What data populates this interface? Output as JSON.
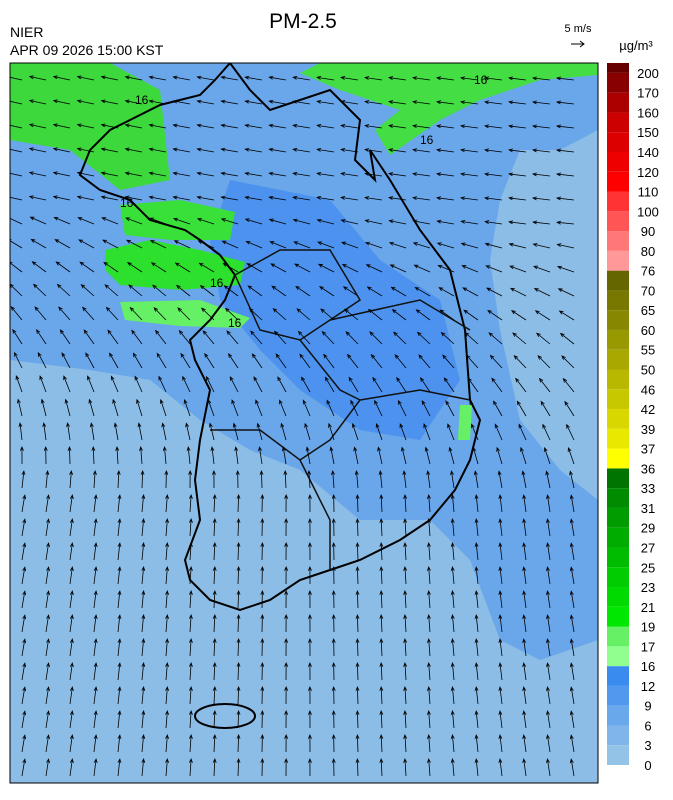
{
  "header": {
    "title": "PM-2.5",
    "source": "NIER",
    "datetime": "APR 09 2026 15:00 KST",
    "wind_scale": "5 m/s",
    "unit": "µg/m³"
  },
  "map": {
    "contour_labels": [
      "16",
      "16",
      "16",
      "16",
      "16",
      "16"
    ]
  },
  "legend": {
    "labels": [
      0,
      3,
      6,
      9,
      12,
      16,
      17,
      19,
      21,
      23,
      25,
      27,
      29,
      31,
      33,
      36,
      37,
      39,
      42,
      46,
      50,
      55,
      60,
      65,
      70,
      76,
      80,
      90,
      100,
      110,
      120,
      140,
      150,
      160,
      170,
      200
    ],
    "colors": [
      "#93c3e6",
      "#7fb5ea",
      "#6aa8ec",
      "#5298ee",
      "#3a8bf0",
      "#90ff90",
      "#66f066",
      "#00e800",
      "#00da00",
      "#00cc00",
      "#00bc00",
      "#00ac00",
      "#009c00",
      "#008c00",
      "#007400",
      "#ffff00",
      "#e8e800",
      "#d8d800",
      "#c8c800",
      "#b8b800",
      "#a8a800",
      "#989800",
      "#888800",
      "#787800",
      "#666600",
      "#ff9999",
      "#ff7777",
      "#ff5555",
      "#ff3333",
      "#ff0000",
      "#ee0000",
      "#dd0000",
      "#cc0000",
      "#aa0000",
      "#880000",
      "#660000"
    ]
  }
}
